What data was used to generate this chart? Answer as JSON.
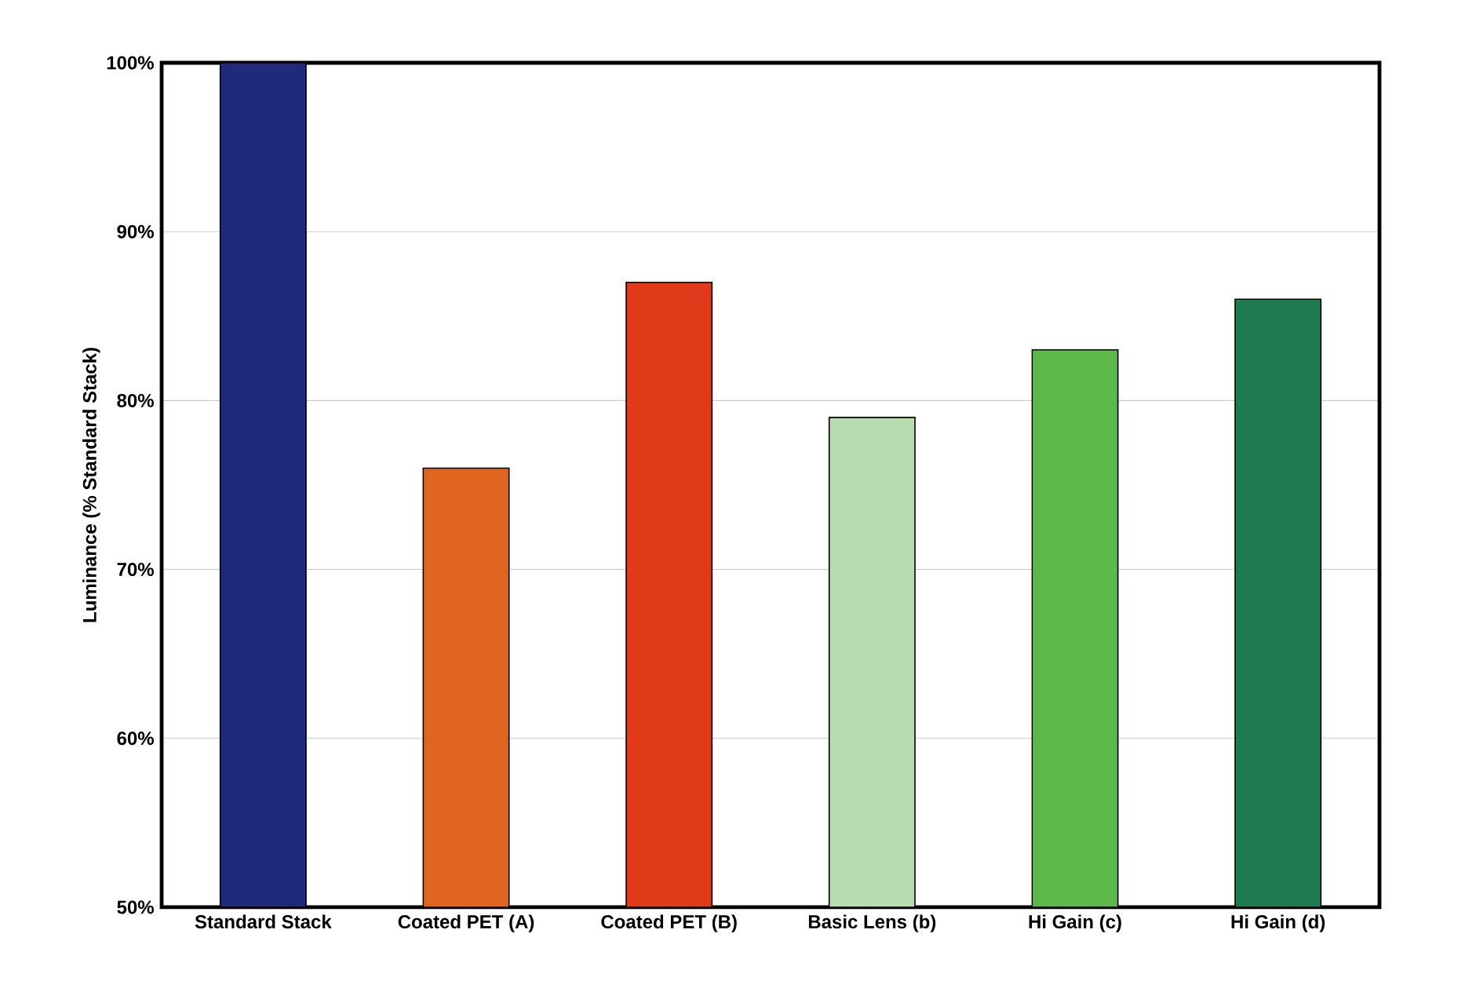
{
  "chart_data": {
    "type": "bar",
    "ylabel": "Luminance (% Standard Stack)",
    "categories": [
      "Standard Stack",
      "Coated PET (A)",
      "Coated PET (B)",
      "Basic Lens (b)",
      "Hi Gain (c)",
      "Hi Gain (d)"
    ],
    "values": [
      100,
      76,
      87,
      79,
      83,
      86
    ],
    "colors": [
      "#1f2a7a",
      "#e0651e",
      "#e03a1a",
      "#b8dcb0",
      "#5cb84a",
      "#1e7a50"
    ],
    "ylim": [
      50,
      100
    ],
    "yticks": [
      {
        "value": 50,
        "label": "50%"
      },
      {
        "value": 60,
        "label": "60%"
      },
      {
        "value": 70,
        "label": "70%"
      },
      {
        "value": 80,
        "label": "80%"
      },
      {
        "value": 90,
        "label": "90%"
      },
      {
        "value": 100,
        "label": "100%"
      }
    ],
    "grid": "y"
  }
}
